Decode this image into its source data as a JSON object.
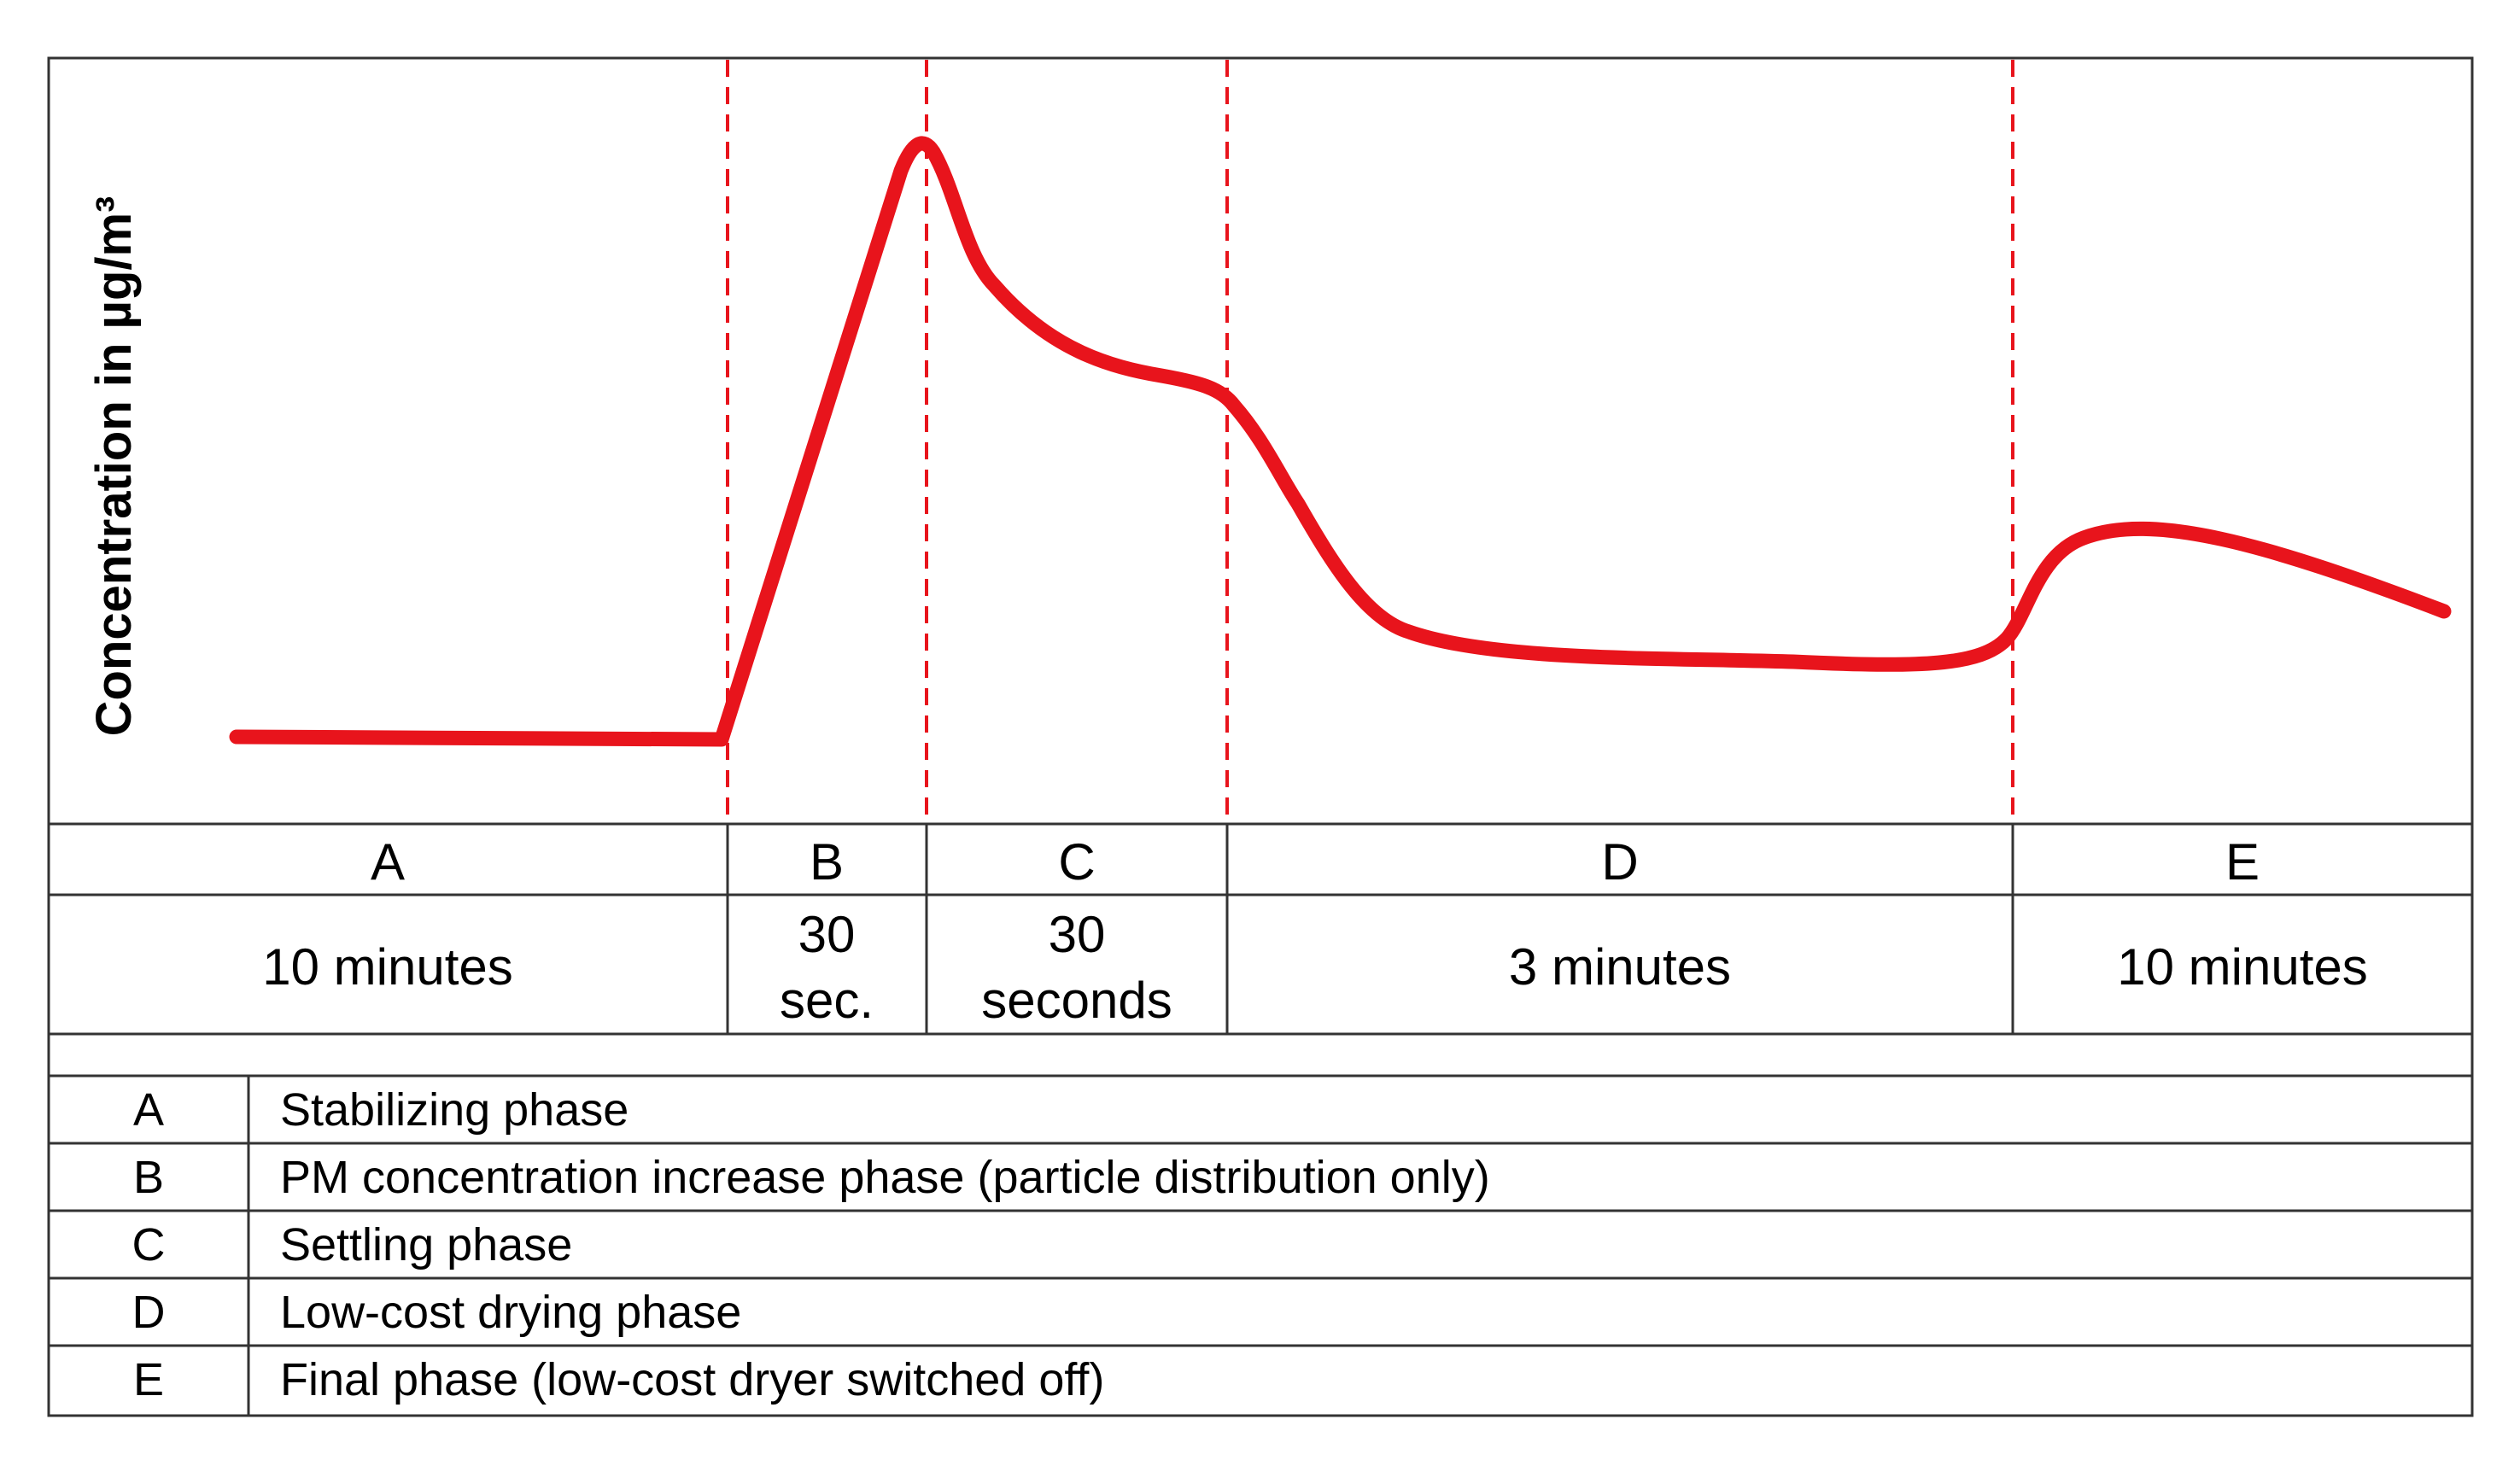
{
  "y_axis_label": "Concentration in µg/m³",
  "colors": {
    "curve": "#e8141c",
    "divider": "#e8141c",
    "border": "#333333"
  },
  "phases": [
    {
      "letter": "A",
      "duration_lines": [
        "10 minutes"
      ]
    },
    {
      "letter": "B",
      "duration_lines": [
        "30",
        "sec."
      ]
    },
    {
      "letter": "C",
      "duration_lines": [
        "30",
        "seconds"
      ]
    },
    {
      "letter": "D",
      "duration_lines": [
        "3 minutes"
      ]
    },
    {
      "letter": "E",
      "duration_lines": [
        "10 minutes"
      ]
    }
  ],
  "legend": [
    {
      "letter": "A",
      "description": "Stabilizing phase"
    },
    {
      "letter": "B",
      "description": "PM concentration increase phase (particle distribution only)"
    },
    {
      "letter": "C",
      "description": "Settling phase"
    },
    {
      "letter": "D",
      "description": "Low-cost drying phase"
    },
    {
      "letter": "E",
      "description": "Final phase (low-cost dryer switched off)"
    }
  ]
}
